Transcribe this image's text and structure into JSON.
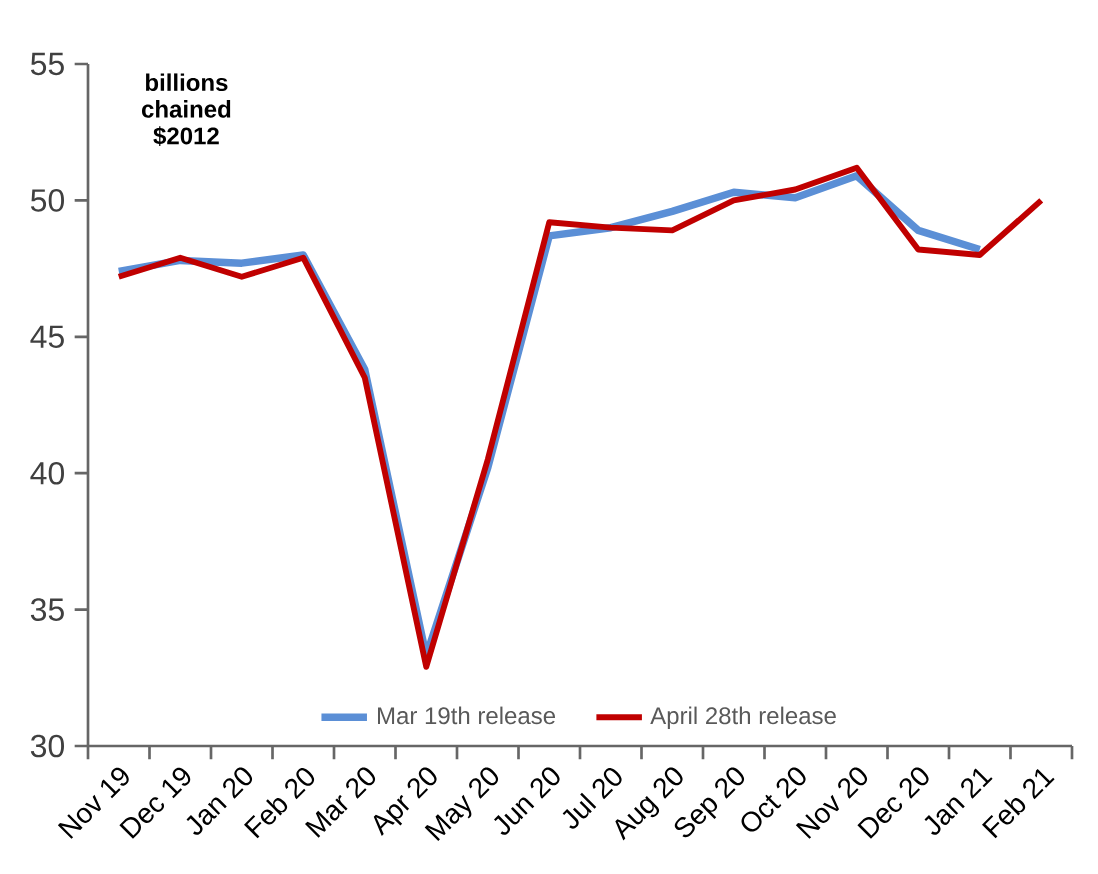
{
  "chart_data": {
    "type": "line",
    "ylabel": "billions chained $2012",
    "categories": [
      "Nov 19",
      "Dec 19",
      "Jan 20",
      "Feb 20",
      "Mar 20",
      "Apr 20",
      "May 20",
      "Jun 20",
      "Jul 20",
      "Aug 20",
      "Sep 20",
      "Oct 20",
      "Nov 20",
      "Dec 20",
      "Jan 21",
      "Feb 21"
    ],
    "series": [
      {
        "name": "Mar 19th release",
        "color": "#5b8fd6",
        "values": [
          47.4,
          47.8,
          47.7,
          48.0,
          43.8,
          33.3,
          40.2,
          48.7,
          49.0,
          49.6,
          50.3,
          50.1,
          50.9,
          48.9,
          48.2,
          null
        ]
      },
      {
        "name": "April 28th release",
        "color": "#c00000",
        "values": [
          47.2,
          47.9,
          47.2,
          47.9,
          43.5,
          32.9,
          40.5,
          49.2,
          49.0,
          48.9,
          50.0,
          50.4,
          51.2,
          48.2,
          48.0,
          50.0
        ]
      }
    ],
    "ylim": [
      30,
      55
    ],
    "yticks": [
      30,
      35,
      40,
      45,
      50,
      55
    ],
    "grid": false,
    "legend": "bottom",
    "marker": "none",
    "line_style": "solid"
  }
}
